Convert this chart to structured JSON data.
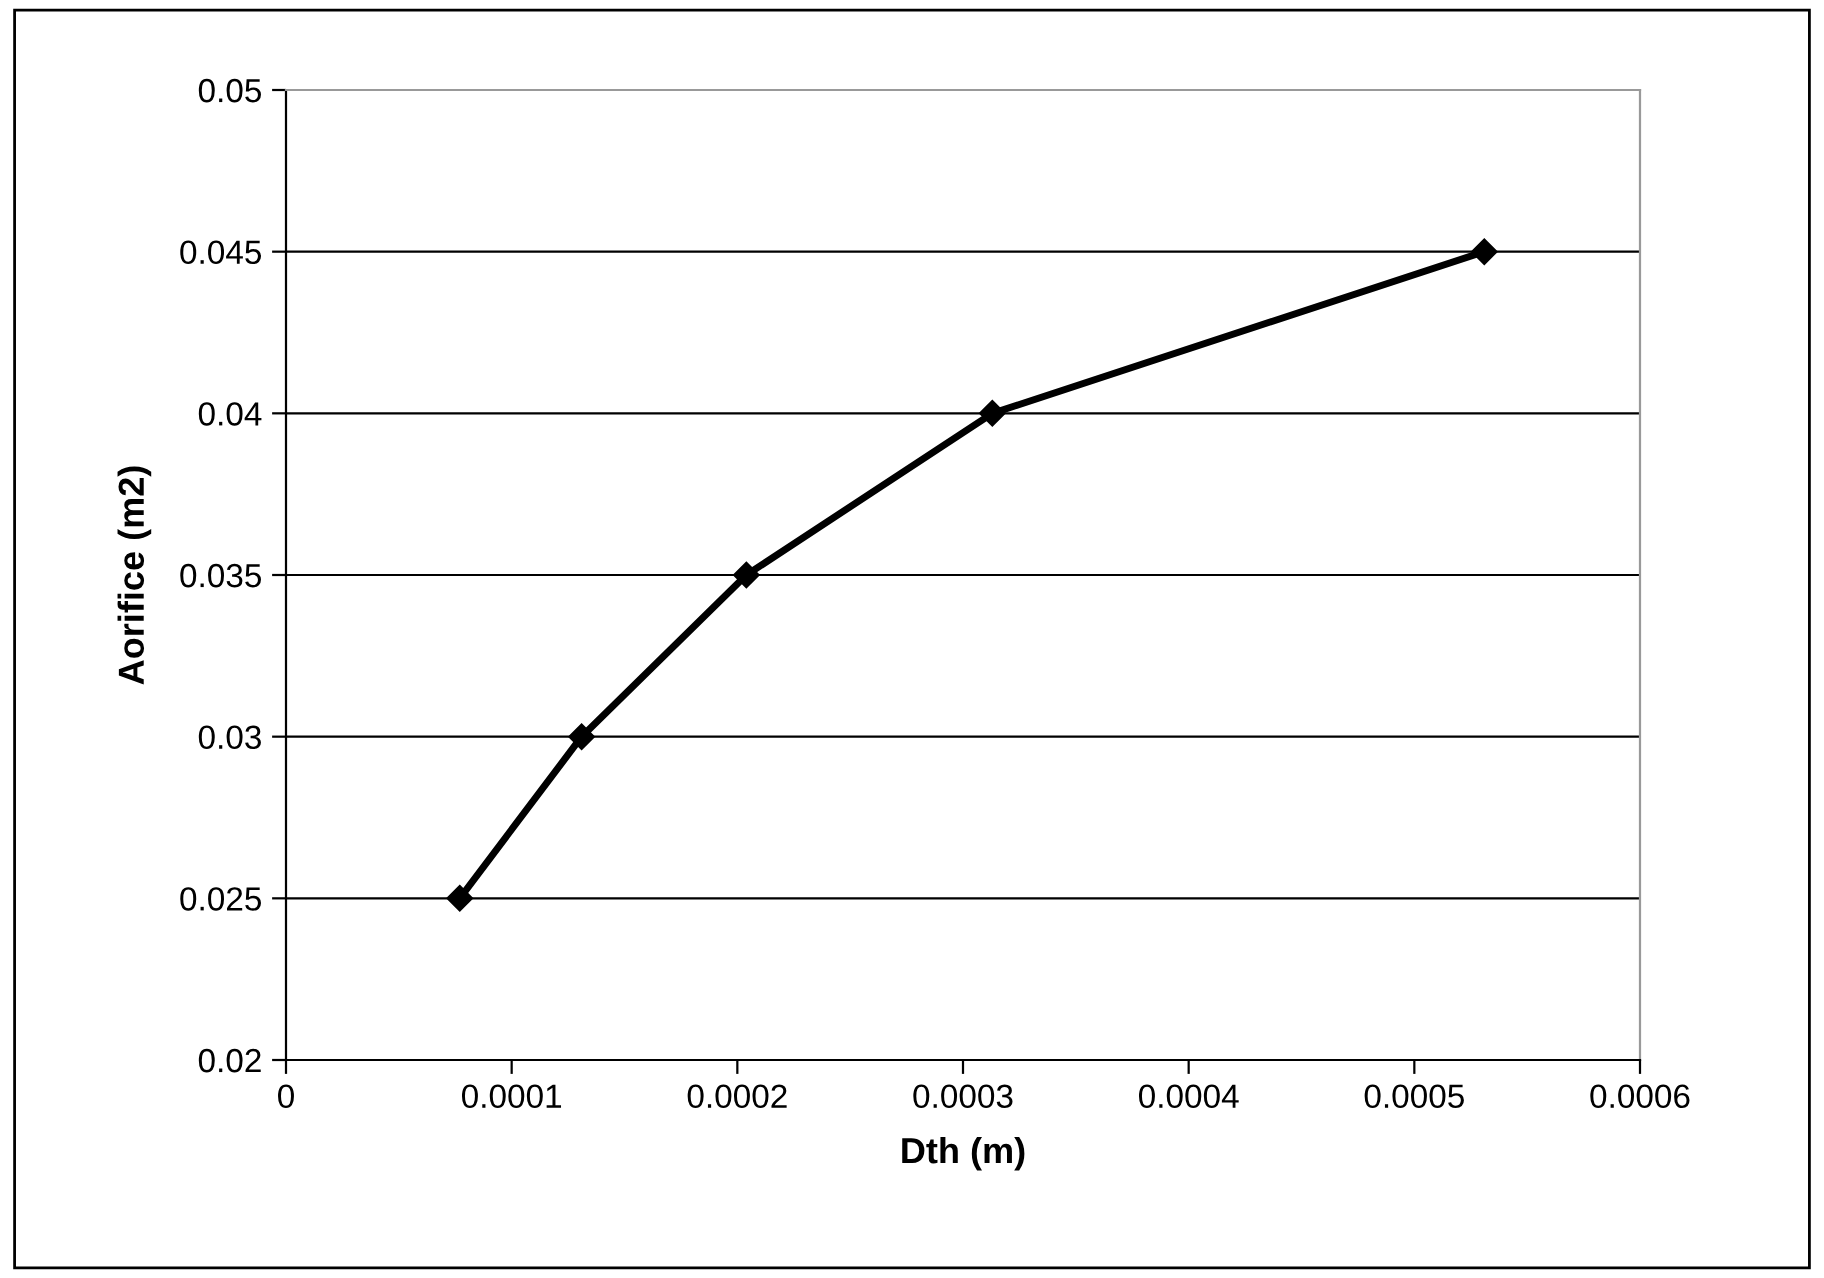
{
  "chart_data": {
    "type": "line",
    "xlabel": "Dth (m)",
    "ylabel": "Aorifice (m2)",
    "x": [
      7.7e-05,
      0.000131,
      0.000204,
      0.000313,
      0.000531
    ],
    "series": [
      {
        "color": "#000000",
        "values": [
          0.025,
          0.03,
          0.035,
          0.04,
          0.045
        ]
      }
    ],
    "xlim": [
      0,
      0.0006
    ],
    "xticks": [
      0,
      0.0001,
      0.0002,
      0.0003,
      0.0004,
      0.0005,
      0.0006
    ],
    "ylim": [
      0.02,
      0.05
    ],
    "yticks": [
      0.02,
      0.025,
      0.03,
      0.035,
      0.04,
      0.045,
      0.05
    ],
    "grid": "y",
    "marker": "diamond",
    "line_style": "solid",
    "legend": false
  }
}
